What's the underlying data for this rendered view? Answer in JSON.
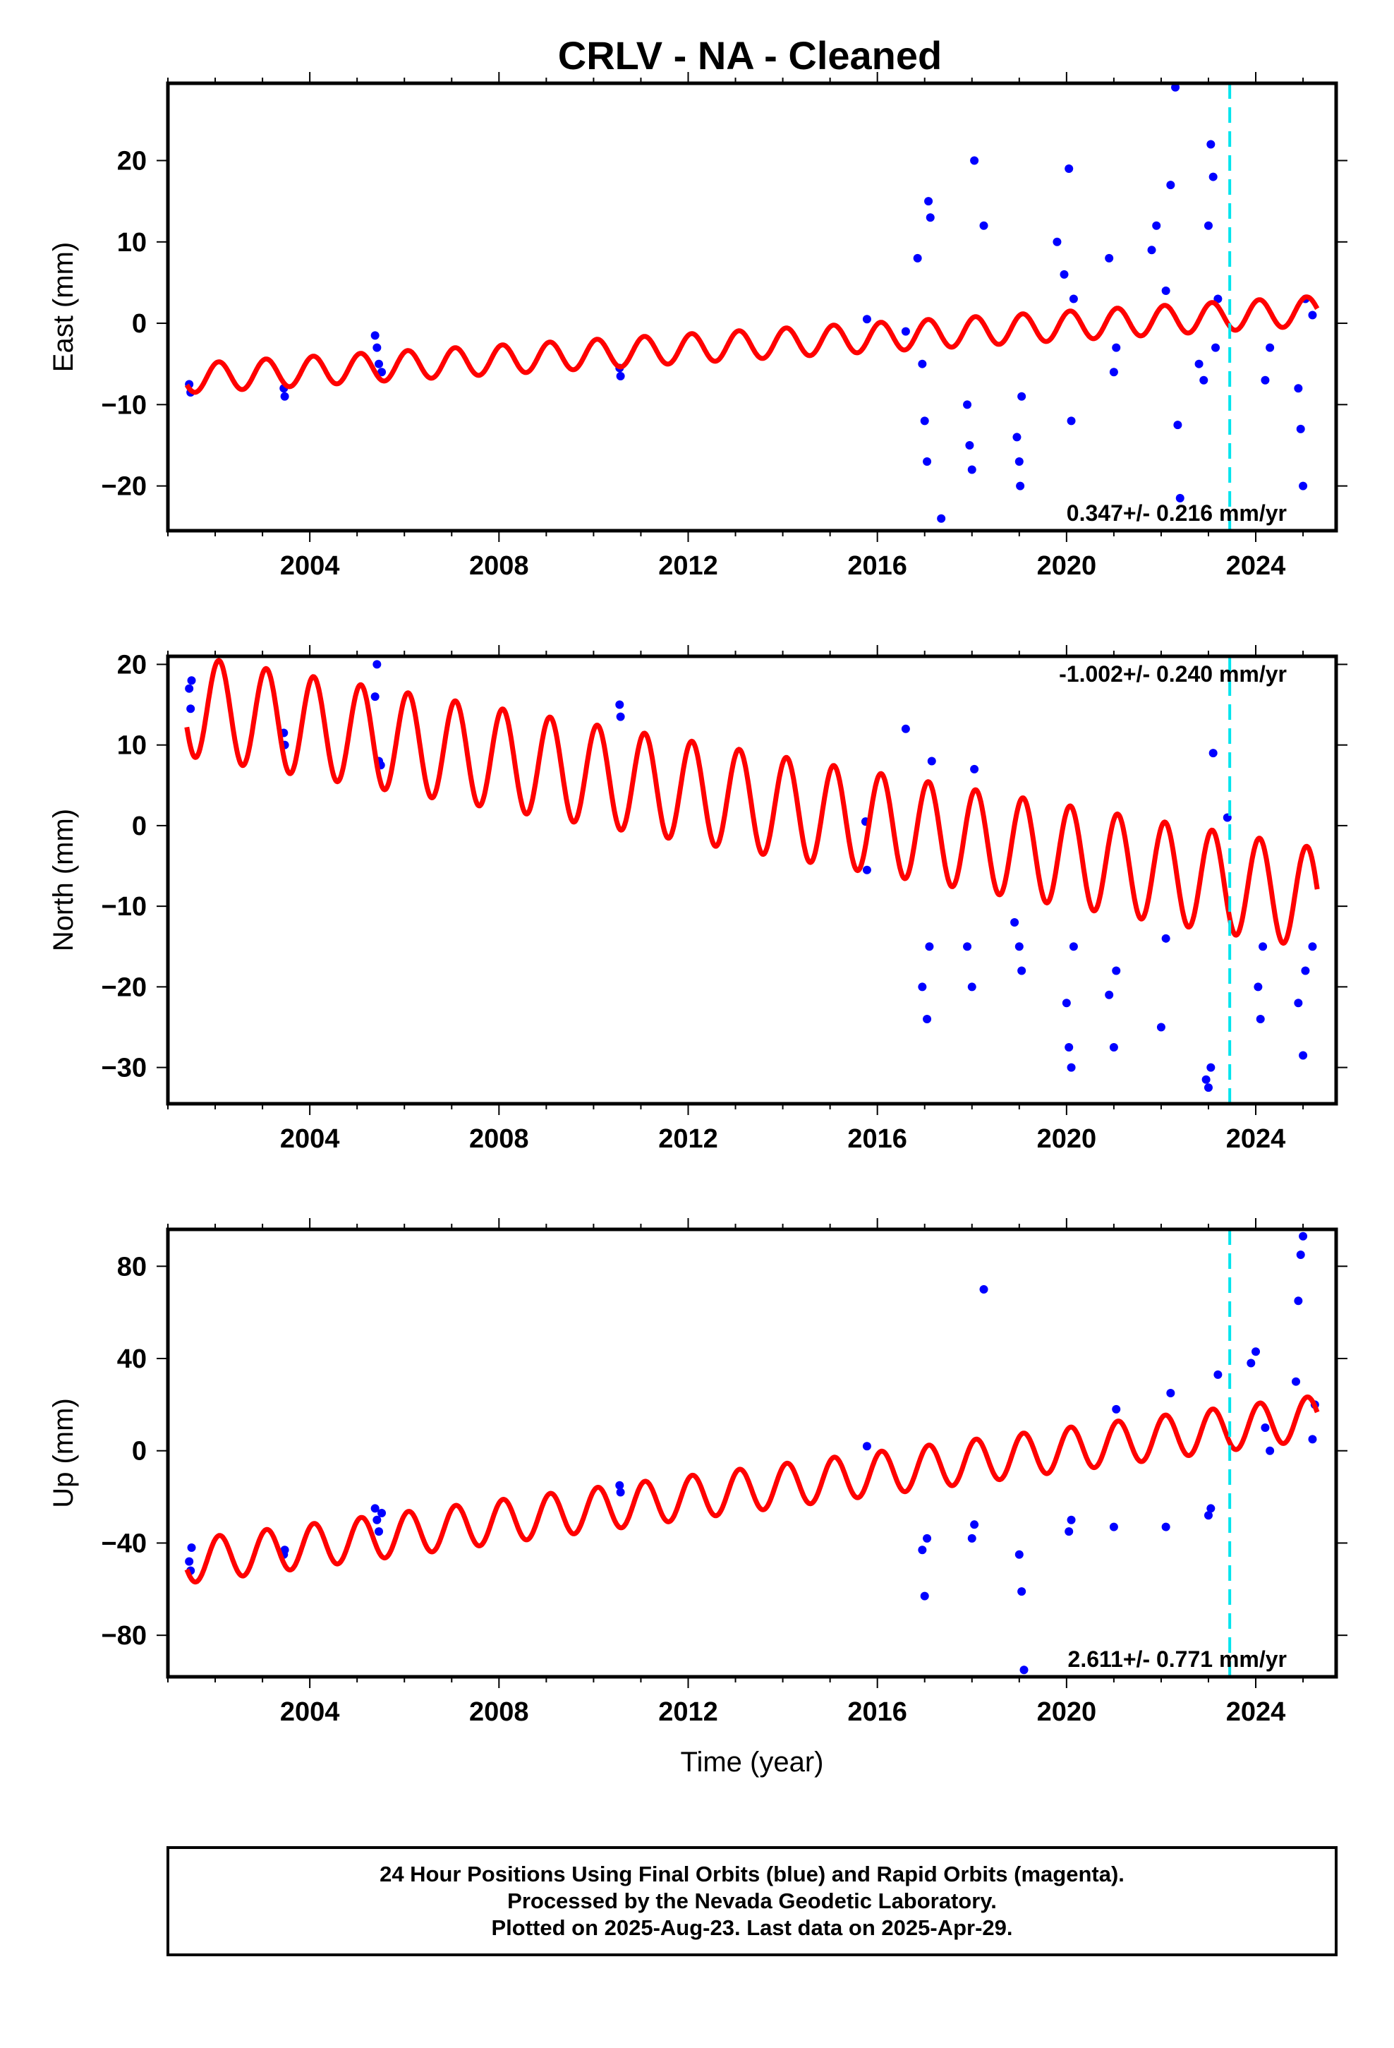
{
  "title": "CRLV  - NA - Cleaned",
  "colors": {
    "data": "#0000ff",
    "model": "#ff0000",
    "marker": "#00e5ee",
    "frame": "#000000"
  },
  "chart_data": [
    {
      "type": "scatter",
      "panel": "east",
      "ylabel": "East (mm)",
      "xlabel": "",
      "xlim": [
        2001.0,
        2025.7
      ],
      "ylim": [
        -25.5,
        29.5
      ],
      "yticks": [
        -20,
        -10,
        0,
        10,
        20
      ],
      "xticks": [
        2004,
        2008,
        2012,
        2016,
        2020,
        2024
      ],
      "rate_label": "0.347+/- 0.216 mm/yr",
      "rate_position": "bottom-right",
      "marker_x": 2023.45,
      "series": [
        {
          "role": "data",
          "color": "#0000ff",
          "x": [
            2001.45,
            2001.48,
            2003.45,
            2003.47,
            2005.38,
            2005.42,
            2005.46,
            2005.52,
            2010.55,
            2010.57,
            2015.78,
            2016.6,
            2016.85,
            2016.95,
            2017.0,
            2017.05,
            2017.08,
            2017.12,
            2017.35,
            2017.9,
            2017.95,
            2018.0,
            2018.05,
            2018.25,
            2018.95,
            2019.0,
            2019.02,
            2019.05,
            2019.8,
            2019.95,
            2020.05,
            2020.1,
            2020.15,
            2020.9,
            2021.0,
            2021.05,
            2021.8,
            2021.9,
            2022.1,
            2022.2,
            2022.3,
            2022.35,
            2022.4,
            2022.8,
            2022.9,
            2023.0,
            2023.05,
            2023.1,
            2023.15,
            2023.2,
            2024.2,
            2024.3,
            2024.9,
            2024.95,
            2025.0,
            2025.05,
            2025.2
          ],
          "y": [
            -7.5,
            -8.5,
            -8.0,
            -9.0,
            -1.5,
            -3.0,
            -5.0,
            -6.0,
            -5.5,
            -6.5,
            0.5,
            -1.0,
            8.0,
            -5.0,
            -12.0,
            -17.0,
            15.0,
            13.0,
            -24.0,
            -10.0,
            -15.0,
            -18.0,
            20.0,
            12.0,
            -14.0,
            -17.0,
            -20.0,
            -9.0,
            10.0,
            6.0,
            19.0,
            -12.0,
            3.0,
            8.0,
            -6.0,
            -3.0,
            9.0,
            12.0,
            4.0,
            17.0,
            29.0,
            -12.5,
            -21.5,
            -5.0,
            -7.0,
            12.0,
            22.0,
            18.0,
            -3.0,
            3.0,
            -7.0,
            -3.0,
            -8.0,
            -13.0,
            -20.0,
            3.0,
            1.0
          ]
        },
        {
          "role": "model",
          "color": "#ff0000",
          "offset": -6.9,
          "rate": 0.347,
          "amp_sin": 0.8,
          "amp_cos": 1.6
        }
      ]
    },
    {
      "type": "scatter",
      "panel": "north",
      "ylabel": "North (mm)",
      "xlabel": "",
      "xlim": [
        2001.0,
        2025.7
      ],
      "ylim": [
        -34.5,
        21.0
      ],
      "yticks": [
        -30,
        -20,
        -10,
        0,
        10,
        20
      ],
      "xticks": [
        2004,
        2008,
        2012,
        2016,
        2020,
        2024
      ],
      "rate_label": "-1.002+/- 0.240 mm/yr",
      "rate_position": "top-right",
      "marker_x": 2023.45,
      "series": [
        {
          "role": "data",
          "color": "#0000ff",
          "x": [
            2001.45,
            2001.48,
            2001.5,
            2003.45,
            2003.47,
            2005.38,
            2005.42,
            2005.46,
            2005.5,
            2010.55,
            2010.57,
            2015.75,
            2015.78,
            2016.6,
            2016.95,
            2017.05,
            2017.1,
            2017.15,
            2017.9,
            2018.0,
            2018.05,
            2018.9,
            2019.0,
            2019.05,
            2020.0,
            2020.05,
            2020.1,
            2020.15,
            2020.9,
            2021.0,
            2021.05,
            2022.0,
            2022.1,
            2022.95,
            2023.0,
            2023.05,
            2023.1,
            2023.4,
            2024.05,
            2024.1,
            2024.15,
            2024.9,
            2025.0,
            2025.05,
            2025.2
          ],
          "y": [
            17.0,
            14.5,
            18.0,
            11.5,
            10.0,
            16.0,
            20.0,
            8.0,
            7.5,
            15.0,
            13.5,
            0.5,
            -5.5,
            12.0,
            -20.0,
            -24.0,
            -15.0,
            8.0,
            -15.0,
            -20.0,
            7.0,
            -12.0,
            -15.0,
            -18.0,
            -22.0,
            -27.5,
            -30.0,
            -15.0,
            -21.0,
            -27.5,
            -18.0,
            -25.0,
            -14.0,
            -31.5,
            -32.5,
            -30.0,
            9.0,
            1.0,
            -20.0,
            -24.0,
            -15.0,
            -22.0,
            -28.5,
            -18.0,
            -15.0
          ]
        },
        {
          "role": "model",
          "color": "#ff0000",
          "offset": 15.3,
          "rate": -1.002,
          "amp_sin": 3.0,
          "amp_cos": 5.5
        }
      ]
    },
    {
      "type": "scatter",
      "panel": "up",
      "ylabel": "Up (mm)",
      "xlabel": "Time (year)",
      "xlim": [
        2001.0,
        2025.7
      ],
      "ylim": [
        -98,
        96
      ],
      "yticks": [
        -80,
        -40,
        0,
        40,
        80
      ],
      "xticks": [
        2004,
        2008,
        2012,
        2016,
        2020,
        2024
      ],
      "rate_label": "2.611+/- 0.771 mm/yr",
      "rate_position": "bottom-right",
      "marker_x": 2023.45,
      "series": [
        {
          "role": "data",
          "color": "#0000ff",
          "x": [
            2001.45,
            2001.48,
            2001.5,
            2003.45,
            2003.47,
            2005.38,
            2005.42,
            2005.46,
            2005.52,
            2010.55,
            2010.57,
            2015.78,
            2016.95,
            2017.0,
            2017.05,
            2018.0,
            2018.05,
            2018.25,
            2019.0,
            2019.05,
            2019.1,
            2020.05,
            2020.1,
            2021.0,
            2021.05,
            2022.1,
            2022.2,
            2023.0,
            2023.05,
            2023.2,
            2023.9,
            2024.0,
            2024.2,
            2024.3,
            2024.85,
            2024.9,
            2024.95,
            2025.0,
            2025.2,
            2025.25
          ],
          "y": [
            -48.0,
            -52.0,
            -42.0,
            -45.0,
            -43.0,
            -25.0,
            -30.0,
            -35.0,
            -27.0,
            -15.0,
            -18.0,
            2.0,
            -43.0,
            -63.0,
            -38.0,
            -38.0,
            -32.0,
            70.0,
            -45.0,
            -61.0,
            -95.0,
            -35.0,
            -30.0,
            -33.0,
            18.0,
            -33.0,
            25.0,
            -28.0,
            -25.0,
            33.0,
            38.0,
            43.0,
            10.0,
            0.0,
            30.0,
            65.0,
            85.0,
            93.0,
            5.0,
            20.0
          ]
        },
        {
          "role": "model",
          "color": "#ff0000",
          "offset": -49.0,
          "rate": 2.611,
          "amp_sin": 5.0,
          "amp_cos": 8.0
        }
      ]
    }
  ],
  "footer": {
    "line1": "24 Hour Positions Using Final Orbits (blue) and Rapid Orbits (magenta).",
    "line2": "Processed by the Nevada Geodetic Laboratory.",
    "line3": "Plotted on 2025-Aug-23. Last data on 2025-Apr-29."
  }
}
